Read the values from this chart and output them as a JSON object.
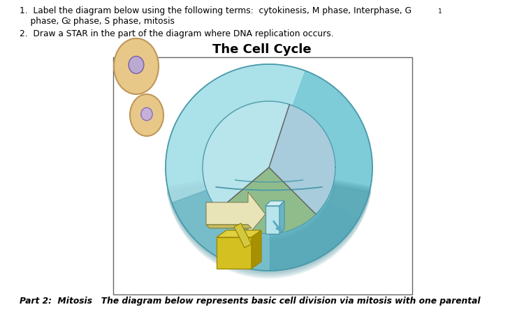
{
  "background_color": "#ffffff",
  "title": "The Cell Cycle",
  "text1a": "1.  Label the diagram below using the following terms:  cytokinesis, M phase, Interphase, G",
  "text1b": "1",
  "text1c": "    phase, G",
  "text1d": "2",
  "text1e": " phase, S phase, mitosis",
  "text2": "2.  Draw a STAR in the part of the diagram where DNA replication occurs.",
  "bottom_text": "Part 2:  Mitosis   The diagram below represents basic cell division via mitosis with one parental",
  "ring_outer_color": "#7dccd8",
  "ring_inner_fill": "#b8e4ec",
  "ring_dark_edge": "#4a9aaa",
  "ring_left_light": "#c0eaf0",
  "ring_bottom_shadow": "#5aaabb",
  "pie_blue_light": "#c0dce8",
  "pie_blue_right": "#a8ccdc",
  "pie_green": "#90bc8c",
  "pie_gap_color": "#c8dcd8",
  "wedge_yellow_light": "#e8e4b0",
  "wedge_yellow_dark": "#d4c020",
  "wedge_teal_side": "#78b8c4",
  "arrow_teal": "#5aaabb",
  "cell_body": "#e8c888",
  "cell_outline": "#c0985c",
  "nucleus_color": "#c0aad4",
  "nucleus_outline": "#8868a8",
  "box_border": "#666666"
}
